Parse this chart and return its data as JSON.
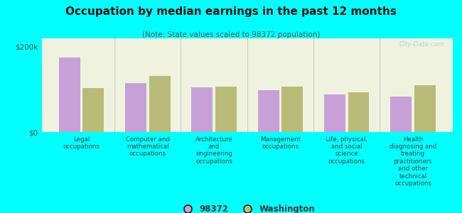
{
  "title": "Occupation by median earnings in the past 12 months",
  "subtitle": "(Note: State values scaled to 98372 population)",
  "background_color": "#00FFFF",
  "plot_bg_color": "#eef2df",
  "categories": [
    "Legal\noccupations",
    "Computer and\nmathematical\noccupations",
    "Architecture\nand\nengineering\noccupations",
    "Management\noccupations",
    "Life, physical,\nand social\nscience\noccupations",
    "Health\ndiagnosing and\ntreating\npractitioners\nand other\ntechnical\noccupations"
  ],
  "values_98372": [
    175000,
    115000,
    105000,
    98000,
    88000,
    83000
  ],
  "values_washington": [
    103000,
    132000,
    107000,
    107000,
    93000,
    110000
  ],
  "color_98372": "#c8a0d8",
  "color_washington": "#b8bc78",
  "ylim": [
    0,
    220000
  ],
  "yticks": [
    0,
    200000
  ],
  "ytick_labels": [
    "$0",
    "$200k"
  ],
  "legend_label_98372": "98372",
  "legend_label_washington": "Washington",
  "watermark": "City-Data.com"
}
